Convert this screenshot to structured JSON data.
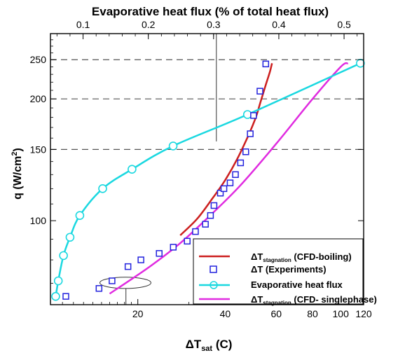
{
  "chart_data": {
    "type": "line",
    "title": "Evaporative heat flux (% of total heat flux)",
    "xlabel": "ΔT",
    "xlabel_sub": "sat",
    "xlabel_unit": " (C)",
    "ylabel": "q (W/cm",
    "ylabel_sup": "2",
    "ylabel_end": ")",
    "x_scale": "log",
    "y_scale": "log",
    "xlim": [
      10,
      120
    ],
    "ylim": [
      62,
      290
    ],
    "top_xlim": [
      0.05,
      0.53
    ],
    "x_ticks": [
      {
        "value": 20,
        "label": "20"
      },
      {
        "value": 40,
        "label": "40"
      },
      {
        "value": 60,
        "label": "60"
      },
      {
        "value": 80,
        "label": "80"
      },
      {
        "value": 100,
        "label": "100"
      },
      {
        "value": 120,
        "label": "120"
      }
    ],
    "y_ticks": [
      {
        "value": 100,
        "label": "100"
      },
      {
        "value": 150,
        "label": "150"
      },
      {
        "value": 200,
        "label": "200"
      },
      {
        "value": 250,
        "label": "250"
      }
    ],
    "top_ticks": [
      {
        "value": 0.1,
        "label": "0.1"
      },
      {
        "value": 0.2,
        "label": "0.2"
      },
      {
        "value": 0.3,
        "label": "0.3"
      },
      {
        "value": 0.4,
        "label": "0.4"
      },
      {
        "value": 0.5,
        "label": "0.5"
      }
    ],
    "gridlines_y": [
      150,
      200,
      250
    ],
    "legend_position": "bottom-right",
    "series": [
      {
        "name": "ΔT",
        "name_sub": "stagnation",
        "name_rest": " (CFD-boiling)",
        "kind": "line",
        "axis": "bottom",
        "color": "#cc1f1f",
        "x": [
          28,
          32,
          36,
          40,
          44,
          48,
          51,
          53,
          55,
          57,
          58
        ],
        "y": [
          92,
          101,
          113,
          126,
          142,
          162,
          180,
          197,
          215,
          233,
          245
        ]
      },
      {
        "name": "ΔT (Experiments)",
        "kind": "scatter",
        "axis": "bottom",
        "color": "#2222dd",
        "x": [
          11.3,
          14.7,
          16.3,
          18.5,
          20.5,
          23.7,
          26.5,
          29.6,
          31.6,
          34.2,
          35.6,
          36.6,
          38.5,
          39.6,
          41.6,
          43.4,
          45.2,
          47.1,
          48.8,
          50.1,
          52.7,
          55.2
        ],
        "y": [
          65,
          68,
          71,
          77,
          80,
          83,
          86,
          89,
          94,
          98,
          103,
          109,
          117,
          120,
          124,
          130,
          139,
          148,
          164,
          182,
          209,
          244
        ]
      },
      {
        "name": "Evaporative heat flux",
        "kind": "line-markers",
        "axis": "top",
        "color": "#1ad8e0",
        "x": [
          0.058,
          0.062,
          0.07,
          0.08,
          0.095,
          0.13,
          0.175,
          0.238,
          0.352,
          0.525
        ],
        "y": [
          65,
          71,
          82,
          91,
          103,
          120,
          134,
          153,
          183,
          245
        ]
      },
      {
        "name": "ΔT",
        "name_sub": "stagnation",
        "name_rest": " (CFD- singlephase)",
        "kind": "line",
        "axis": "bottom",
        "color": "#e02be0",
        "x": [
          16,
          22,
          28,
          35,
          45,
          60,
          80,
          100,
          106
        ],
        "y": [
          66,
          77,
          88,
          102,
          122,
          155,
          200,
          240,
          245
        ]
      }
    ],
    "annotations": [
      {
        "type": "ellipse",
        "cx": 18.2,
        "cy": 70,
        "x_span": [
          14.8,
          22.2
        ],
        "y_span": [
          68,
          72.5
        ]
      },
      {
        "type": "vline",
        "x": 18.2,
        "y_from": 62,
        "y_to": 68
      },
      {
        "type": "vline",
        "x": 37.3,
        "y_from": 157,
        "y_to": 290
      }
    ]
  }
}
